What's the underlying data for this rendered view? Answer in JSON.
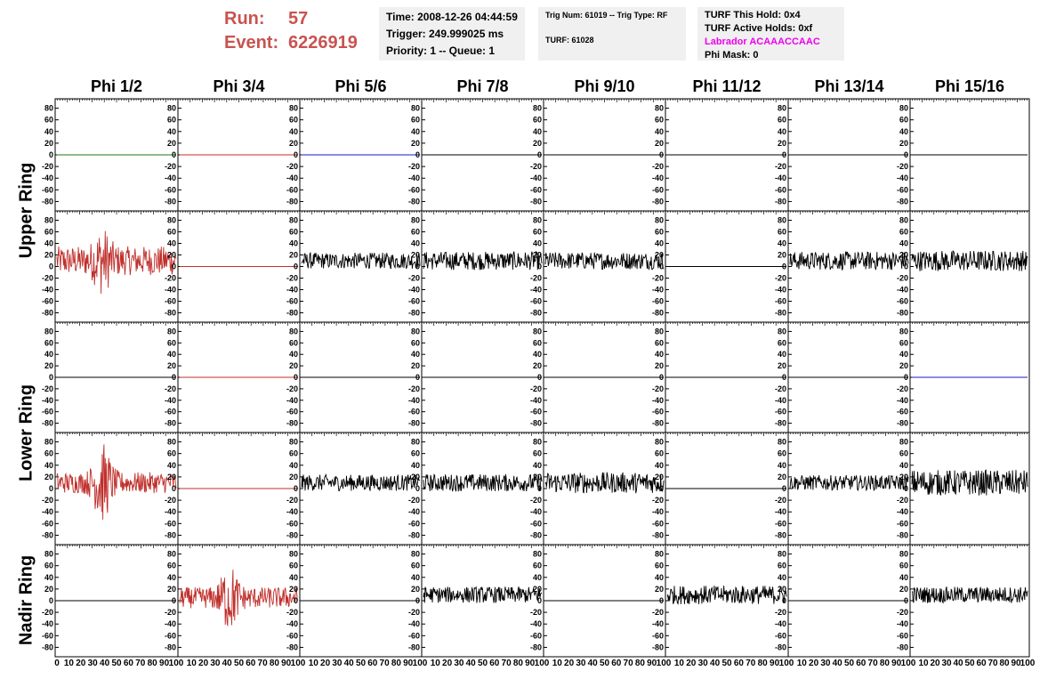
{
  "header": {
    "run_label": "Run:",
    "run_value": "57",
    "event_label": "Event:",
    "event_value": "6226919"
  },
  "time_box": {
    "time": "Time: 2008-12-26 04:44:59",
    "trigger": "Trigger: 249.999025 ms",
    "priority": "Priority: 1 -- Queue: 1"
  },
  "trig_box": {
    "line1": "Trig Num: 61019 -- Trig Type: RF",
    "line2": "TURF: 61028"
  },
  "turf_box": {
    "hold": "TURF This Hold: 0x4",
    "active": "TURF Active Holds: 0xf",
    "labrador": "Labrador ACAAACCAAC",
    "phimask": "Phi Mask: 0",
    "labrador_color": "#ee00ee"
  },
  "colors": {
    "red": "#c0302c",
    "green": "#1a7a1a",
    "blue": "#1a1acc",
    "black": "#000000"
  },
  "chart_data": {
    "type": "line",
    "columns": [
      "Phi 1/2",
      "Phi 3/4",
      "Phi 5/6",
      "Phi 7/8",
      "Phi 9/10",
      "Phi 11/12",
      "Phi 13/14",
      "Phi 15/16"
    ],
    "rings": [
      "Upper Ring",
      "Lower Ring",
      "Nadir Ring"
    ],
    "ylim": [
      -90,
      90
    ],
    "yticks": [
      80,
      60,
      40,
      20,
      0,
      -20,
      -40,
      -60,
      -80
    ],
    "xlim": [
      0,
      100
    ],
    "xticks": [
      0,
      10,
      20,
      30,
      40,
      50,
      60,
      70,
      80,
      90,
      100
    ],
    "panels": [
      [
        {
          "color": "green",
          "amp": 0
        },
        {
          "color": "red",
          "amp": 0
        },
        {
          "color": "blue",
          "amp": 0
        },
        {
          "color": "black",
          "amp": 0
        },
        {
          "color": "black",
          "amp": 0
        },
        {
          "color": "black",
          "amp": 0
        },
        {
          "color": "black",
          "amp": 0
        },
        {
          "color": "black",
          "amp": 0
        }
      ],
      [
        {
          "color": "red",
          "amp": 25,
          "burst": 38,
          "burst_amp": 60,
          "offset": 10
        },
        {
          "color": "red",
          "amp": 0
        },
        {
          "color": "black",
          "amp": 14,
          "offset": 10
        },
        {
          "color": "black",
          "amp": 16,
          "offset": 10
        },
        {
          "color": "black",
          "amp": 15,
          "offset": 10
        },
        {
          "color": "black",
          "amp": 0
        },
        {
          "color": "black",
          "amp": 16,
          "offset": 10
        },
        {
          "color": "black",
          "amp": 18,
          "offset": 10
        }
      ],
      [
        {
          "color": "black",
          "amp": 0
        },
        {
          "color": "red",
          "amp": 0
        },
        {
          "color": "black",
          "amp": 0
        },
        {
          "color": "black",
          "amp": 0
        },
        {
          "color": "black",
          "amp": 0
        },
        {
          "color": "black",
          "amp": 0
        },
        {
          "color": "black",
          "amp": 0
        },
        {
          "color": "blue",
          "amp": 0
        }
      ],
      [
        {
          "color": "red",
          "amp": 18,
          "burst": 38,
          "burst_amp": 70,
          "offset": 10
        },
        {
          "color": "red",
          "amp": 0
        },
        {
          "color": "black",
          "amp": 14,
          "offset": 10
        },
        {
          "color": "black",
          "amp": 15,
          "offset": 10
        },
        {
          "color": "black",
          "amp": 18,
          "offset": 10
        },
        {
          "color": "black",
          "amp": 0
        },
        {
          "color": "black",
          "amp": 13,
          "offset": 10
        },
        {
          "color": "black",
          "amp": 22,
          "offset": 10
        }
      ],
      [
        {
          "color": "black",
          "amp": 0
        },
        {
          "color": "red",
          "amp": 18,
          "burst": 42,
          "burst_amp": 60,
          "offset": 5
        },
        {
          "color": "black",
          "amp": 0
        },
        {
          "color": "black",
          "amp": 14,
          "offset": 10
        },
        {
          "color": "black",
          "amp": 0
        },
        {
          "color": "black",
          "amp": 16,
          "offset": 10
        },
        {
          "color": "black",
          "amp": 0
        },
        {
          "color": "black",
          "amp": 14,
          "offset": 10
        }
      ]
    ]
  }
}
